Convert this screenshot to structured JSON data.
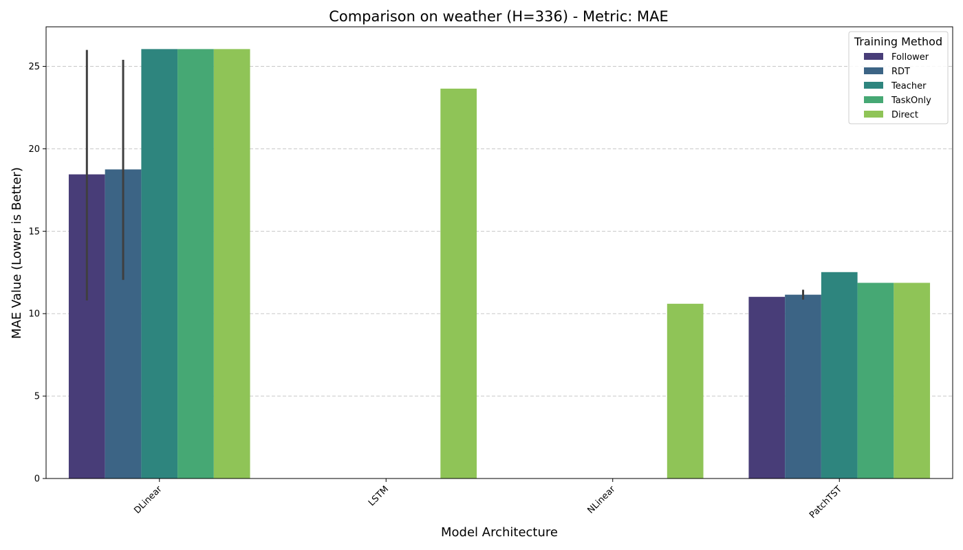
{
  "chart_data": {
    "type": "bar",
    "title": "Comparison on weather (H=336) - Metric: MAE",
    "xlabel": "Model Architecture",
    "ylabel": "MAE Value (Lower is Better)",
    "ylim": [
      0,
      27.4
    ],
    "yticks": [
      0,
      5,
      10,
      15,
      20,
      25
    ],
    "grid": "y",
    "legend": {
      "title": "Training Method",
      "position": "top-right"
    },
    "categories": [
      "DLinear",
      "LSTM",
      "NLinear",
      "PatchTST"
    ],
    "series": [
      {
        "name": "Follower",
        "color": "#483d78",
        "values": [
          18.45,
          null,
          null,
          11.02
        ],
        "error": [
          [
            10.8,
            26.0
          ],
          null,
          null,
          null
        ]
      },
      {
        "name": "RDT",
        "color": "#3c6485",
        "values": [
          18.75,
          null,
          null,
          11.15
        ],
        "error": [
          [
            12.05,
            25.4
          ],
          null,
          null,
          [
            10.85,
            11.45
          ]
        ]
      },
      {
        "name": "Teacher",
        "color": "#2e857e",
        "values": [
          26.05,
          null,
          null,
          12.52
        ],
        "error": [
          null,
          null,
          null,
          null
        ]
      },
      {
        "name": "TaskOnly",
        "color": "#46a874",
        "values": [
          26.05,
          null,
          null,
          11.87
        ],
        "error": [
          null,
          null,
          null,
          null
        ]
      },
      {
        "name": "Direct",
        "color": "#8fc457",
        "values": [
          26.05,
          23.65,
          10.6,
          11.87
        ],
        "error": [
          null,
          null,
          null,
          null
        ]
      }
    ]
  }
}
